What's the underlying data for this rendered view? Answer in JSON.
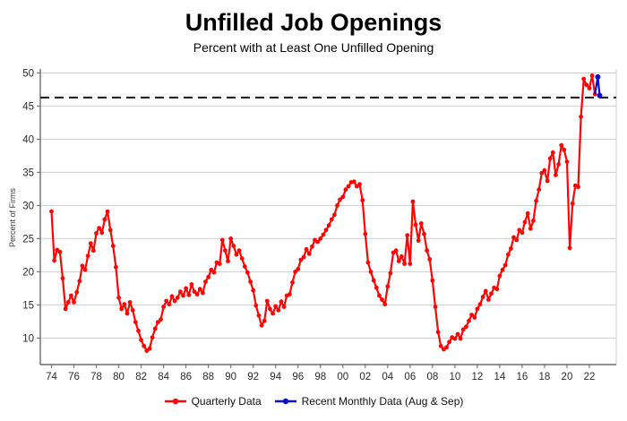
{
  "chart_data": {
    "type": "line",
    "title": "Unfilled Job Openings",
    "subtitle": "Percent with at Least One Unfilled Opening",
    "ylabel": "Percent of Firms",
    "xlabel": "",
    "grid": "horizontal",
    "legend_position": "bottom",
    "x_tick_labels": [
      "74",
      "76",
      "78",
      "80",
      "82",
      "84",
      "86",
      "88",
      "90",
      "92",
      "94",
      "96",
      "98",
      "00",
      "02",
      "04",
      "06",
      "08",
      "10",
      "12",
      "14",
      "16",
      "18",
      "20",
      "22"
    ],
    "y_ticks": [
      10,
      15,
      20,
      25,
      30,
      35,
      40,
      45,
      50
    ],
    "xlim": [
      1973.0,
      2024.4
    ],
    "ylim": [
      6.0,
      50.6
    ],
    "dashed_reference": {
      "value": 46.3,
      "color": "#151515",
      "style": "dashed"
    },
    "series": [
      {
        "name": "Quarterly Data",
        "color": "#fe0505",
        "marker": "circle",
        "x_start": 1974,
        "x_step": 0.25,
        "values": [
          29.1,
          21.7,
          23.3,
          23.0,
          19.0,
          14.4,
          15.4,
          16.4,
          15.4,
          16.9,
          18.6,
          20.9,
          20.3,
          22.4,
          24.3,
          23.2,
          25.8,
          26.6,
          25.9,
          27.9,
          29.1,
          26.3,
          23.9,
          20.7,
          16.1,
          14.4,
          15.1,
          13.7,
          15.4,
          14.2,
          12.4,
          11.1,
          9.7,
          8.8,
          8.1,
          8.4,
          10.1,
          11.4,
          12.4,
          12.8,
          14.7,
          15.6,
          15.1,
          16.3,
          15.6,
          16.1,
          17.0,
          16.4,
          17.5,
          16.5,
          18.1,
          17.0,
          16.6,
          17.4,
          16.8,
          18.5,
          19.2,
          20.3,
          19.9,
          21.4,
          21.2,
          24.8,
          23.2,
          21.6,
          25.0,
          23.9,
          22.6,
          23.2,
          22.0,
          20.8,
          19.9,
          18.5,
          17.2,
          14.9,
          13.4,
          11.9,
          12.6,
          15.6,
          14.4,
          13.7,
          14.8,
          14.2,
          15.5,
          14.7,
          16.4,
          16.6,
          18.4,
          20.0,
          20.4,
          21.8,
          22.2,
          23.4,
          22.7,
          23.8,
          24.8,
          24.5,
          25.0,
          25.6,
          26.3,
          27.0,
          27.9,
          28.6,
          30.0,
          30.9,
          31.3,
          32.4,
          32.9,
          33.5,
          33.6,
          32.9,
          33.2,
          30.8,
          25.7,
          21.4,
          20.0,
          18.7,
          17.6,
          16.4,
          15.8,
          15.1,
          17.8,
          19.8,
          22.9,
          23.2,
          21.6,
          22.3,
          21.2,
          25.5,
          21.2,
          30.6,
          27.1,
          24.7,
          27.3,
          25.7,
          23.2,
          21.9,
          18.7,
          14.7,
          10.9,
          8.8,
          8.3,
          8.6,
          9.4,
          10.1,
          9.9,
          10.6,
          9.9,
          11.3,
          11.7,
          12.6,
          13.5,
          13.1,
          14.4,
          15.1,
          16.2,
          17.1,
          15.8,
          16.7,
          17.6,
          17.4,
          19.4,
          20.3,
          21.0,
          22.6,
          23.5,
          25.2,
          24.8,
          26.3,
          25.9,
          27.5,
          28.8,
          26.5,
          27.7,
          30.7,
          32.4,
          34.9,
          35.3,
          33.7,
          37.1,
          38.0,
          34.6,
          36.2,
          39.1,
          38.4,
          36.6,
          23.6,
          30.3,
          33.0,
          32.8,
          43.4,
          49.1,
          48.2,
          47.7,
          49.6,
          46.8
        ]
      },
      {
        "name": "Recent Monthly Data (Aug & Sep)",
        "color": "#0b0bd0",
        "marker": "circle",
        "months": [
          "Aug 2022",
          "Sep 2022"
        ],
        "x": [
          2022.75,
          2022.92
        ],
        "values": [
          49.4,
          46.6
        ]
      }
    ]
  }
}
